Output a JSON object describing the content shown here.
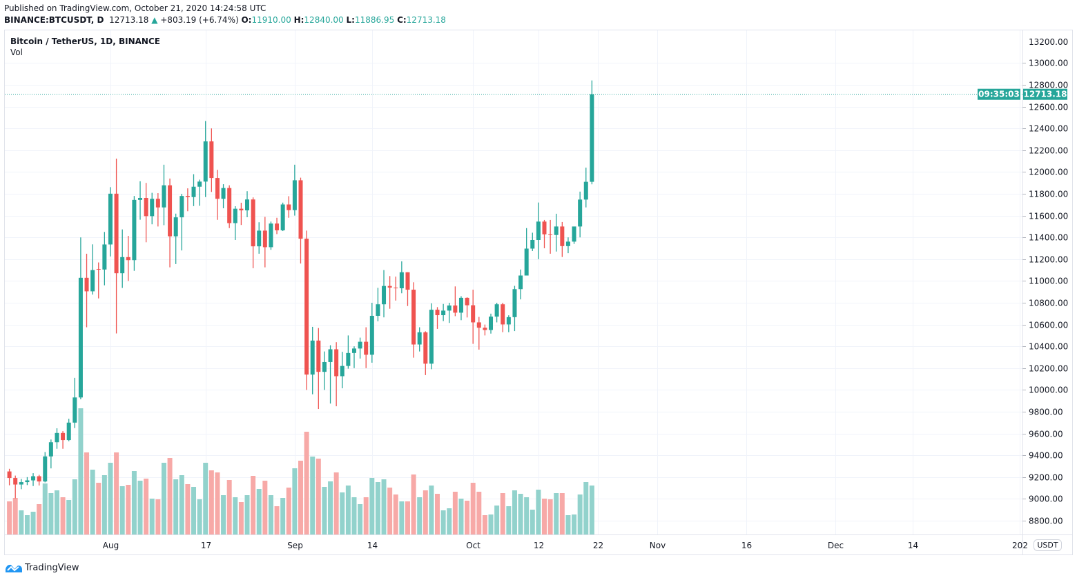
{
  "header": {
    "published": "Published on TradingView.com, October 21, 2020 14:24:58 UTC",
    "symbol": "BINANCE:BTCUSDT, D",
    "last": "12713.18",
    "change": "+803.19 (+6.74%)",
    "o_label": "O:",
    "o": "11910.00",
    "h_label": "H:",
    "h": "12840.00",
    "l_label": "L:",
    "l": "11886.95",
    "c_label": "C:",
    "c": "12713.18",
    "direction_icon": "triangle-up-icon"
  },
  "legend": {
    "title": "Bitcoin / TetherUS, 1D, BINANCE",
    "volume": "Vol"
  },
  "price_axis": {
    "currency": "USDT",
    "last_price_label": "12713.18",
    "last_price": 12713.18,
    "countdown": "09:35:03",
    "partial_top_label": "13200.00"
  },
  "brand": "TradingView",
  "colors": {
    "up": "#26a69a",
    "down": "#ef5350",
    "up_volume": "#92d2cc",
    "down_volume": "#f7a9a7",
    "grid": "#f0f3fa"
  },
  "chart_data": {
    "type": "candlestick",
    "title": "Bitcoin / TetherUS, 1D, BINANCE",
    "grid": true,
    "ylim": [
      8700,
      13300
    ],
    "y_ticks": [
      "8800.00",
      "9000.00",
      "9200.00",
      "9400.00",
      "9600.00",
      "9800.00",
      "10000.00",
      "10200.00",
      "10400.00",
      "10600.00",
      "10800.00",
      "11000.00",
      "11200.00",
      "11400.00",
      "11600.00",
      "11800.00",
      "12000.00",
      "12200.00",
      "12400.00",
      "12600.00",
      "12800.00",
      "13000.00"
    ],
    "x_ticks": [
      {
        "label": "Aug",
        "date": "2020-08-01"
      },
      {
        "label": "17",
        "date": "2020-08-17"
      },
      {
        "label": "Sep",
        "date": "2020-09-01"
      },
      {
        "label": "14",
        "date": "2020-09-14"
      },
      {
        "label": "Oct",
        "date": "2020-10-01"
      },
      {
        "label": "12",
        "date": "2020-10-12"
      },
      {
        "label": "22",
        "date": "2020-10-22"
      },
      {
        "label": "Nov",
        "date": "2020-11-01"
      },
      {
        "label": "16",
        "date": "2020-11-16"
      },
      {
        "label": "Dec",
        "date": "2020-12-01"
      },
      {
        "label": "14",
        "date": "2020-12-14"
      },
      {
        "label": "202",
        "date": "2021-01-01"
      }
    ],
    "columns": [
      "date",
      "open",
      "high",
      "low",
      "close",
      "volume"
    ],
    "candles": [
      [
        "2020-07-15",
        9252,
        9276,
        9125,
        9192,
        33600
      ],
      [
        "2020-07-16",
        9192,
        9214,
        9005,
        9132,
        37100
      ],
      [
        "2020-07-17",
        9132,
        9183,
        9089,
        9154,
        24500
      ],
      [
        "2020-07-18",
        9154,
        9200,
        9127,
        9170,
        19600
      ],
      [
        "2020-07-19",
        9170,
        9236,
        9118,
        9208,
        23100
      ],
      [
        "2020-07-20",
        9208,
        9221,
        9123,
        9160,
        30800
      ],
      [
        "2020-07-21",
        9160,
        9430,
        9152,
        9390,
        51800
      ],
      [
        "2020-07-22",
        9390,
        9545,
        9280,
        9520,
        42000
      ],
      [
        "2020-07-23",
        9520,
        9648,
        9460,
        9605,
        44800
      ],
      [
        "2020-07-24",
        9605,
        9622,
        9460,
        9540,
        37800
      ],
      [
        "2020-07-25",
        9540,
        9735,
        9529,
        9700,
        35000
      ],
      [
        "2020-07-26",
        9700,
        10111,
        9650,
        9931,
        56000
      ],
      [
        "2020-07-27",
        9931,
        11400,
        9914,
        11029,
        128100
      ],
      [
        "2020-07-28",
        11029,
        11250,
        10575,
        10905,
        83300
      ],
      [
        "2020-07-29",
        10905,
        11336,
        10875,
        11100,
        65800
      ],
      [
        "2020-07-30",
        11110,
        11170,
        10840,
        11105,
        52500
      ],
      [
        "2020-07-31",
        11105,
        11450,
        10960,
        11335,
        60200
      ],
      [
        "2020-08-01",
        11335,
        11861,
        11225,
        11801,
        72800
      ],
      [
        "2020-08-02",
        11801,
        12123,
        10518,
        11071,
        83300
      ],
      [
        "2020-08-03",
        11071,
        11473,
        10936,
        11219,
        49000
      ],
      [
        "2020-08-04",
        11219,
        11414,
        11000,
        11191,
        50400
      ],
      [
        "2020-08-05",
        11191,
        11780,
        11093,
        11744,
        64400
      ],
      [
        "2020-08-06",
        11744,
        11915,
        11562,
        11762,
        54600
      ],
      [
        "2020-08-07",
        11762,
        11900,
        11355,
        11595,
        56700
      ],
      [
        "2020-08-08",
        11595,
        11809,
        11520,
        11754,
        36400
      ],
      [
        "2020-08-09",
        11754,
        11806,
        11500,
        11675,
        35700
      ],
      [
        "2020-08-10",
        11675,
        12067,
        11512,
        11878,
        72800
      ],
      [
        "2020-08-11",
        11878,
        11940,
        11125,
        11410,
        77700
      ],
      [
        "2020-08-12",
        11410,
        11618,
        11155,
        11584,
        56000
      ],
      [
        "2020-08-13",
        11584,
        11800,
        11280,
        11780,
        60200
      ],
      [
        "2020-08-14",
        11780,
        11850,
        11640,
        11770,
        51100
      ],
      [
        "2020-08-15",
        11770,
        11980,
        11687,
        11865,
        48300
      ],
      [
        "2020-08-16",
        11865,
        11930,
        11690,
        11912,
        35700
      ],
      [
        "2020-08-17",
        11912,
        12468,
        11770,
        12281,
        72800
      ],
      [
        "2020-08-18",
        12281,
        12400,
        11817,
        11945,
        65100
      ],
      [
        "2020-08-19",
        11945,
        12020,
        11561,
        11754,
        63000
      ],
      [
        "2020-08-20",
        11754,
        11888,
        11667,
        11853,
        39900
      ],
      [
        "2020-08-21",
        11853,
        11878,
        11485,
        11531,
        55300
      ],
      [
        "2020-08-22",
        11531,
        11686,
        11376,
        11663,
        37800
      ],
      [
        "2020-08-23",
        11663,
        11718,
        11514,
        11648,
        32900
      ],
      [
        "2020-08-24",
        11648,
        11824,
        11585,
        11748,
        39900
      ],
      [
        "2020-08-25",
        11748,
        11767,
        11117,
        11318,
        59500
      ],
      [
        "2020-08-26",
        11318,
        11539,
        11250,
        11462,
        46200
      ],
      [
        "2020-08-27",
        11462,
        11588,
        11125,
        11310,
        54600
      ],
      [
        "2020-08-28",
        11310,
        11545,
        11286,
        11527,
        39900
      ],
      [
        "2020-08-29",
        11527,
        11580,
        11430,
        11465,
        28700
      ],
      [
        "2020-08-30",
        11465,
        11719,
        11458,
        11702,
        37100
      ],
      [
        "2020-08-31",
        11702,
        11778,
        11580,
        11650,
        47600
      ],
      [
        "2020-09-01",
        11650,
        12067,
        11600,
        11924,
        67200
      ],
      [
        "2020-09-02",
        11924,
        11948,
        11160,
        11388,
        74900
      ],
      [
        "2020-09-03",
        11388,
        11462,
        10000,
        10141,
        104300
      ],
      [
        "2020-09-04",
        10141,
        10579,
        9960,
        10453,
        79100
      ],
      [
        "2020-09-05",
        10453,
        10568,
        9825,
        10166,
        77000
      ],
      [
        "2020-09-06",
        10166,
        10353,
        10000,
        10256,
        48300
      ],
      [
        "2020-09-07",
        10256,
        10410,
        9875,
        10373,
        53900
      ],
      [
        "2020-09-08",
        10373,
        10438,
        9850,
        10126,
        63000
      ],
      [
        "2020-09-09",
        10126,
        10350,
        10015,
        10220,
        42700
      ],
      [
        "2020-09-10",
        10220,
        10500,
        10195,
        10339,
        49700
      ],
      [
        "2020-09-11",
        10339,
        10400,
        10200,
        10380,
        37800
      ],
      [
        "2020-09-12",
        10380,
        10480,
        10288,
        10442,
        30800
      ],
      [
        "2020-09-13",
        10442,
        10575,
        10200,
        10323,
        37800
      ],
      [
        "2020-09-14",
        10323,
        10800,
        10250,
        10680,
        57400
      ],
      [
        "2020-09-15",
        10680,
        10937,
        10630,
        10786,
        53200
      ],
      [
        "2020-09-16",
        10786,
        11100,
        10666,
        10954,
        56000
      ],
      [
        "2020-09-17",
        10954,
        11045,
        10745,
        10939,
        47600
      ],
      [
        "2020-09-18",
        10939,
        11040,
        10820,
        10933,
        40600
      ],
      [
        "2020-09-19",
        10933,
        11180,
        10887,
        11080,
        33600
      ],
      [
        "2020-09-20",
        11080,
        11080,
        10770,
        10920,
        33600
      ],
      [
        "2020-09-21",
        10920,
        10988,
        10296,
        10417,
        60900
      ],
      [
        "2020-09-22",
        10417,
        10575,
        10353,
        10529,
        37800
      ],
      [
        "2020-09-23",
        10529,
        10538,
        10136,
        10241,
        44800
      ],
      [
        "2020-09-24",
        10241,
        10795,
        10190,
        10736,
        49700
      ],
      [
        "2020-09-25",
        10736,
        10760,
        10560,
        10686,
        41300
      ],
      [
        "2020-09-26",
        10686,
        10789,
        10632,
        10728,
        24500
      ],
      [
        "2020-09-27",
        10728,
        10800,
        10615,
        10775,
        26600
      ],
      [
        "2020-09-28",
        10775,
        10950,
        10677,
        10709,
        43400
      ],
      [
        "2020-09-29",
        10709,
        10860,
        10640,
        10845,
        36400
      ],
      [
        "2020-09-30",
        10845,
        10850,
        10665,
        10777,
        34300
      ],
      [
        "2020-10-01",
        10777,
        10920,
        10423,
        10620,
        52500
      ],
      [
        "2020-10-02",
        10620,
        10670,
        10370,
        10571,
        43400
      ],
      [
        "2020-10-03",
        10571,
        10600,
        10500,
        10550,
        19600
      ],
      [
        "2020-10-04",
        10550,
        10700,
        10517,
        10673,
        20300
      ],
      [
        "2020-10-05",
        10673,
        10800,
        10620,
        10786,
        29400
      ],
      [
        "2020-10-06",
        10786,
        10800,
        10530,
        10601,
        42000
      ],
      [
        "2020-10-07",
        10601,
        10685,
        10530,
        10668,
        28700
      ],
      [
        "2020-10-08",
        10668,
        10955,
        10540,
        10925,
        44800
      ],
      [
        "2020-10-09",
        10925,
        11105,
        10831,
        11050,
        41300
      ],
      [
        "2020-10-10",
        11050,
        11485,
        11050,
        11297,
        37800
      ],
      [
        "2020-10-11",
        11297,
        11443,
        11275,
        11376,
        25200
      ],
      [
        "2020-10-12",
        11376,
        11720,
        11200,
        11545,
        45500
      ],
      [
        "2020-10-13",
        11545,
        11560,
        11300,
        11428,
        36400
      ],
      [
        "2020-10-14",
        11428,
        11560,
        11250,
        11422,
        35700
      ],
      [
        "2020-10-15",
        11422,
        11617,
        11270,
        11500,
        42000
      ],
      [
        "2020-10-16",
        11500,
        11541,
        11220,
        11320,
        42000
      ],
      [
        "2020-10-17",
        11320,
        11400,
        11255,
        11361,
        19600
      ],
      [
        "2020-10-18",
        11361,
        11498,
        11340,
        11500,
        20300
      ],
      [
        "2020-10-19",
        11500,
        11820,
        11400,
        11747,
        40600
      ],
      [
        "2020-10-20",
        11747,
        12040,
        11675,
        11910,
        53200
      ],
      [
        "2020-10-21",
        11910,
        12840,
        11886.95,
        12713.18,
        49700
      ]
    ]
  }
}
